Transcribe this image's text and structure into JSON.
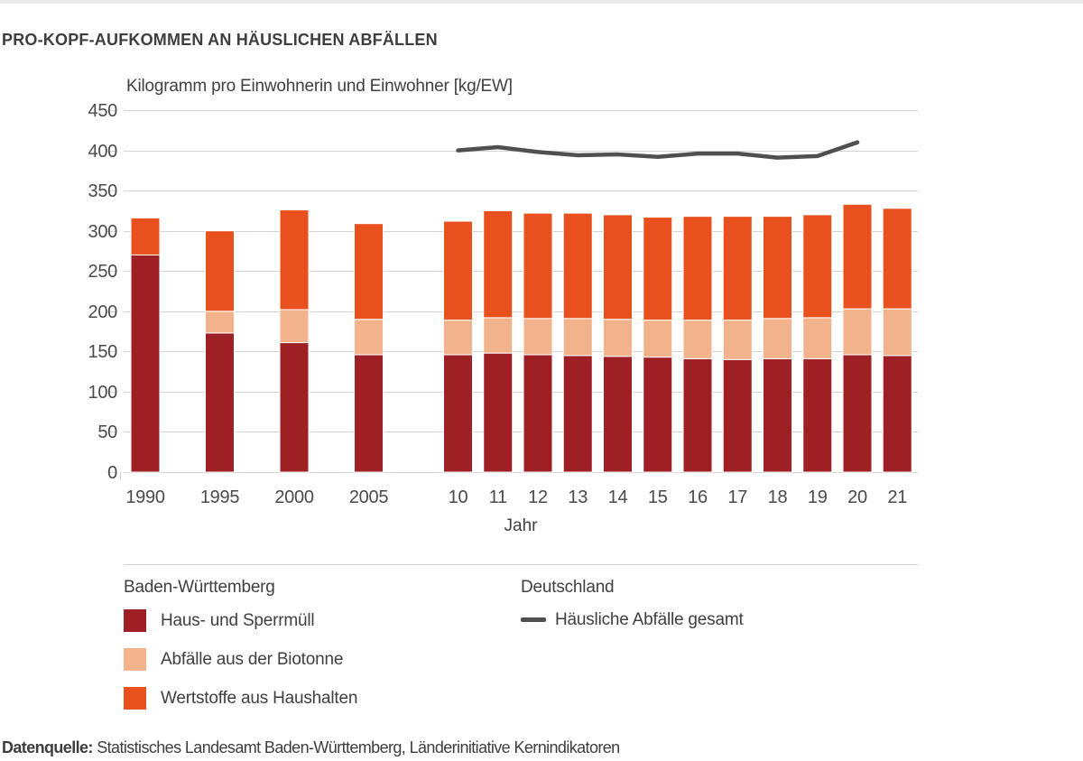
{
  "page": {
    "title": "PRO-KOPF-AUFKOMMEN AN HÄUSLICHEN ABFÄLLEN",
    "source_label": "Datenquelle:",
    "source_text": "Statistisches Landesamt Baden-Württemberg, Länderinitiative Kernindikatoren"
  },
  "chart_data": {
    "type": "bar",
    "stacked": true,
    "unit_label": "Kilogramm pro Einwohnerin und Einwohner [kg/EW]",
    "xlabel": "Jahr",
    "ylim": [
      0,
      450
    ],
    "yticks": [
      0,
      50,
      100,
      150,
      200,
      250,
      300,
      350,
      400,
      450
    ],
    "grid": "horizontal",
    "categories": [
      "1990",
      "1995",
      "2000",
      "2005",
      "10",
      "11",
      "12",
      "13",
      "14",
      "15",
      "16",
      "17",
      "18",
      "19",
      "20",
      "21"
    ],
    "series": [
      {
        "name": "Haus- und Sperrmüll",
        "region": "Baden-Württemberg",
        "color": "#9e2024",
        "values": [
          270,
          173,
          161,
          146,
          146,
          148,
          146,
          145,
          144,
          143,
          141,
          140,
          141,
          141,
          146,
          145
        ]
      },
      {
        "name": "Abfälle aus der Biotonne",
        "region": "Baden-Württemberg",
        "color": "#f2b28c",
        "values": [
          0,
          27,
          41,
          44,
          43,
          44,
          45,
          46,
          46,
          46,
          48,
          49,
          50,
          51,
          57,
          58
        ]
      },
      {
        "name": "Wertstoffe aus Haushalten",
        "region": "Baden-Württemberg",
        "color": "#e8511d",
        "values": [
          46,
          100,
          124,
          119,
          123,
          133,
          131,
          131,
          130,
          128,
          129,
          129,
          127,
          128,
          130,
          125
        ]
      }
    ],
    "stack_totals": [
      316,
      300,
      326,
      309,
      312,
      325,
      322,
      322,
      320,
      317,
      318,
      318,
      318,
      320,
      333,
      328
    ],
    "line_series": {
      "name": "Häusliche Abfälle gesamt",
      "region": "Deutschland",
      "color": "#4f4f51",
      "categories": [
        "10",
        "11",
        "12",
        "13",
        "14",
        "15",
        "16",
        "17",
        "18",
        "19",
        "20"
      ],
      "values": [
        400,
        404,
        398,
        394,
        395,
        392,
        396,
        396,
        391,
        393,
        410
      ]
    },
    "legend": {
      "left_group_title": "Baden-Württemberg",
      "right_group_title": "Deutschland",
      "position": "bottom"
    },
    "colors": {
      "grid": "#d3d3d3",
      "tick_text": "#4a4a4a",
      "text": "#3f3f3f",
      "top_strip": "#ececec"
    }
  }
}
